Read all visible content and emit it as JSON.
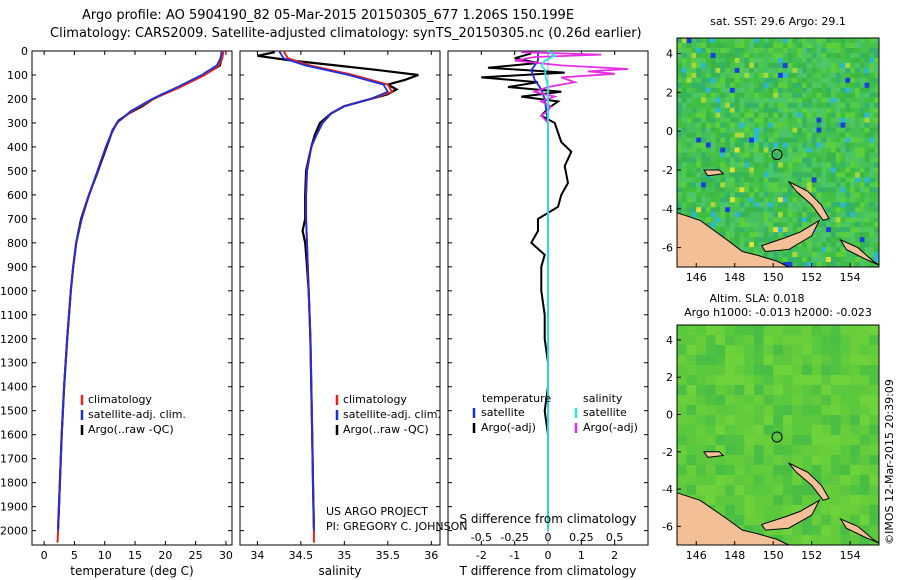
{
  "header": {
    "line1": "Argo profile: AO 5904190_82 05-Mar-2015 20150305_677 1.206S 150.199E",
    "line2": "Climatology: CARS2009. Satellite-adjusted climatology: synTS_20150305.nc (0.26d earlier)"
  },
  "colors": {
    "climatology": "#e8221c",
    "satellite": "#1a2fe0",
    "argo": "#000000",
    "sal_sat": "#29e6e6",
    "sal_argo": "#e62ee6",
    "land": "#f2bf96"
  },
  "depth_ticks": [
    "0",
    "100",
    "200",
    "300",
    "400",
    "500",
    "600",
    "700",
    "800",
    "900",
    "1000",
    "1100",
    "1200",
    "1300",
    "1400",
    "1500",
    "1600",
    "1700",
    "1800",
    "1900",
    "2000"
  ],
  "chart_data": [
    {
      "type": "line",
      "title": "",
      "xlabel": "temperature (deg C)",
      "ylabel": "",
      "xlim": [
        -2,
        31
      ],
      "ylim": [
        2060,
        0
      ],
      "x_ticks": [
        "0",
        "5",
        "10",
        "15",
        "20",
        "25",
        "30"
      ],
      "x_tick_values": [
        0,
        5,
        10,
        15,
        20,
        25,
        30
      ],
      "legend": [
        "climatology",
        "satellite-adj. clim.",
        "Argo(..raw -QC)"
      ],
      "series": [
        {
          "name": "climatology",
          "depth": [
            0,
            30,
            60,
            100,
            150,
            200,
            250,
            300,
            350,
            400,
            500,
            600,
            700,
            800,
            900,
            1000,
            1200,
            1400,
            1600,
            1800,
            2000,
            2050
          ],
          "values": [
            29.6,
            29.4,
            28.8,
            26.5,
            22.5,
            18.0,
            14.5,
            12.0,
            11.0,
            10.2,
            8.8,
            7.4,
            6.2,
            5.3,
            4.8,
            4.4,
            3.8,
            3.3,
            2.9,
            2.6,
            2.3,
            2.2
          ]
        },
        {
          "name": "satellite-adj. clim.",
          "depth": [
            0,
            30,
            60,
            100,
            150,
            200,
            250,
            300,
            350,
            400,
            500,
            600,
            700,
            800,
            900,
            1000,
            1200,
            1400,
            1600,
            1800,
            2000
          ],
          "values": [
            29.3,
            29.1,
            28.5,
            26.0,
            22.0,
            17.8,
            14.3,
            12.0,
            11.0,
            10.2,
            8.8,
            7.4,
            6.2,
            5.3,
            4.8,
            4.4,
            3.8,
            3.3,
            2.9,
            2.6,
            2.3
          ]
        },
        {
          "name": "Argo(..raw -QC)",
          "depth": [
            5,
            30,
            60,
            90,
            120,
            150,
            180,
            200,
            230,
            260,
            290,
            330,
            380,
            450,
            520,
            600,
            700,
            800,
            900,
            1000,
            1200,
            1400,
            1600,
            1800,
            1990
          ],
          "values": [
            29.4,
            29.3,
            29.0,
            27.0,
            24.5,
            22.3,
            19.5,
            18.0,
            16.2,
            14.0,
            12.3,
            11.3,
            10.6,
            9.6,
            8.6,
            7.4,
            6.1,
            5.3,
            4.8,
            4.4,
            3.8,
            3.3,
            2.9,
            2.6,
            2.3
          ]
        }
      ]
    },
    {
      "type": "line",
      "title": "",
      "xlabel": "salinity",
      "ylabel": "",
      "xlim": [
        33.8,
        36.1
      ],
      "ylim": [
        2060,
        0
      ],
      "x_ticks": [
        "34",
        "34.5",
        "35",
        "35.5",
        "36"
      ],
      "x_tick_values": [
        34,
        34.5,
        35,
        35.5,
        36
      ],
      "legend": [
        "climatology",
        "satellite-adj. clim.",
        "Argo(..raw -QC)"
      ],
      "annotation": [
        "US ARGO PROJECT",
        "PI: GREGORY C. JOHNSON"
      ],
      "series": [
        {
          "name": "climatology",
          "depth": [
            0,
            30,
            60,
            100,
            140,
            170,
            200,
            230,
            260,
            300,
            350,
            400,
            500,
            600,
            700,
            800,
            1000,
            1200,
            1400,
            1600,
            1800,
            2000,
            2050
          ],
          "values": [
            34.3,
            34.35,
            34.6,
            35.1,
            35.5,
            35.55,
            35.3,
            35.0,
            34.85,
            34.75,
            34.68,
            34.62,
            34.57,
            34.56,
            34.56,
            34.57,
            34.59,
            34.61,
            34.62,
            34.63,
            34.64,
            34.65,
            34.65
          ]
        },
        {
          "name": "satellite-adj. clim.",
          "depth": [
            0,
            30,
            60,
            100,
            140,
            170,
            200,
            230,
            260,
            300,
            350,
            400,
            500,
            600,
            700,
            800,
            1000,
            1200,
            1400,
            1600,
            1800,
            2000
          ],
          "values": [
            34.25,
            34.3,
            34.55,
            35.05,
            35.45,
            35.5,
            35.3,
            35.0,
            34.85,
            34.75,
            34.68,
            34.62,
            34.57,
            34.56,
            34.56,
            34.57,
            34.59,
            34.61,
            34.62,
            34.63,
            34.64,
            34.65
          ]
        },
        {
          "name": "Argo(..raw -QC)",
          "depth": [
            5,
            20,
            40,
            60,
            80,
            100,
            120,
            140,
            160,
            180,
            200,
            230,
            260,
            300,
            350,
            400,
            500,
            600,
            700,
            750,
            800,
            900,
            1000,
            1200,
            1400,
            1600,
            1800,
            1990
          ],
          "values": [
            34.2,
            34.0,
            34.4,
            34.9,
            35.4,
            35.85,
            35.7,
            35.5,
            35.6,
            35.5,
            35.3,
            35.0,
            34.85,
            34.72,
            34.66,
            34.62,
            34.56,
            34.55,
            34.55,
            34.52,
            34.55,
            34.57,
            34.59,
            34.61,
            34.62,
            34.63,
            34.64,
            34.65
          ]
        }
      ]
    },
    {
      "type": "line",
      "title": "",
      "xlabel": "T difference from climatology",
      "xlabel_top": "S difference from climatology",
      "ylabel": "",
      "xlim": [
        -3,
        3
      ],
      "ylim": [
        2060,
        0
      ],
      "x_ticks": [
        "-2",
        "-1",
        "0",
        "1",
        "2"
      ],
      "x_tick_values": [
        -2,
        -1,
        0,
        1,
        2
      ],
      "s_ticks": [
        "-0.5",
        "-0.25",
        "0",
        "0.25",
        "0.5"
      ],
      "s_tick_values": [
        -0.5,
        -0.25,
        0,
        0.25,
        0.5
      ],
      "legend_temperature": [
        "temperature",
        "satellite",
        "Argo(-adj)"
      ],
      "legend_salinity": [
        "salinity",
        "satellite",
        "Argo(-adj)"
      ],
      "series": [
        {
          "name": "T satellite",
          "depth": [
            0,
            40,
            80,
            120,
            160,
            200,
            300,
            400,
            600,
            1000,
            1500,
            2000
          ],
          "values": [
            -0.3,
            -0.3,
            -0.5,
            -0.4,
            -0.2,
            -0.1,
            0.0,
            0.0,
            0.0,
            0.0,
            0.0,
            0.0
          ]
        },
        {
          "name": "T Argo(-adj)",
          "depth": [
            10,
            30,
            50,
            70,
            90,
            110,
            130,
            150,
            170,
            190,
            210,
            240,
            270,
            300,
            340,
            380,
            420,
            480,
            550,
            600,
            650,
            700,
            750,
            800,
            850,
            900,
            1000,
            1100,
            1200,
            1300,
            1400,
            1500,
            1600,
            1700,
            1800,
            1900,
            1990
          ],
          "values": [
            -0.5,
            -1.0,
            -0.3,
            -1.8,
            0.5,
            -2.0,
            -0.3,
            -1.2,
            0.4,
            -0.8,
            0.3,
            0.0,
            -0.2,
            0.2,
            0.3,
            0.4,
            0.7,
            0.5,
            0.6,
            0.4,
            0.3,
            -0.3,
            -0.3,
            -0.5,
            -0.1,
            -0.2,
            -0.2,
            -0.1,
            -0.1,
            0.0,
            0.0,
            -0.1,
            0.0,
            0.0,
            0.0,
            0.0,
            0.0
          ]
        },
        {
          "name": "S satellite",
          "depth": [
            0,
            20,
            40,
            60,
            80,
            100,
            150,
            200,
            300,
            500,
            1000,
            1500,
            2000
          ],
          "values": [
            0.0,
            0.05,
            -0.02,
            -0.05,
            -0.02,
            -0.02,
            0.0,
            0.0,
            0.0,
            0.0,
            0.0,
            0.0,
            0.0
          ]
        },
        {
          "name": "S Argo(-adj)",
          "depth": [
            5,
            15,
            25,
            40,
            60,
            75,
            85,
            95,
            110,
            130,
            150,
            170,
            190,
            210,
            230,
            250,
            270,
            300,
            350,
            400
          ],
          "values": [
            -0.2,
            0.4,
            -0.1,
            -0.25,
            0.1,
            0.6,
            0.3,
            0.5,
            0.1,
            0.2,
            0.0,
            -0.1,
            0.05,
            -0.05,
            0.02,
            0.0,
            -0.05,
            0.0,
            0.0,
            0.0
          ]
        }
      ]
    },
    {
      "type": "heatmap",
      "title": "sat. SST: 29.6  Argo: 29.1",
      "x_ticks": [
        "146",
        "148",
        "150",
        "152",
        "154"
      ],
      "x_tick_values": [
        146,
        148,
        150,
        152,
        154
      ],
      "y_ticks": [
        "4",
        "2",
        "0",
        "-2",
        "-4",
        "-6"
      ],
      "y_tick_values": [
        4,
        2,
        0,
        -2,
        -4,
        -6
      ],
      "xlim": [
        145,
        155.5
      ],
      "ylim": [
        -7,
        4.8
      ],
      "marker": [
        150.199,
        -1.206
      ]
    },
    {
      "type": "heatmap",
      "title_line1": "Altim. SLA: 0.018",
      "title_line2": "Argo h1000: -0.013  h2000: -0.023",
      "x_ticks": [
        "146",
        "148",
        "150",
        "152",
        "154"
      ],
      "x_tick_values": [
        146,
        148,
        150,
        152,
        154
      ],
      "y_ticks": [
        "4",
        "2",
        "0",
        "-2",
        "-4",
        "-6"
      ],
      "y_tick_values": [
        4,
        2,
        0,
        -2,
        -4,
        -6
      ],
      "xlim": [
        145,
        155.5
      ],
      "ylim": [
        -7,
        4.8
      ],
      "marker": [
        150.199,
        -1.206
      ]
    }
  ],
  "side_stamp": "©IMOS 12-Mar-2015 20:39:09"
}
